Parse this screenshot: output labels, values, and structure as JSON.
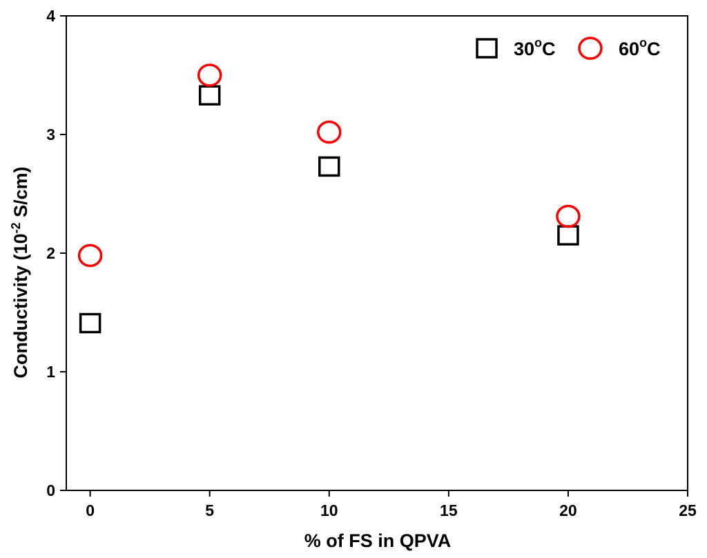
{
  "chart_data": {
    "type": "scatter",
    "title": "",
    "xlabel": "% of FS in QPVA",
    "ylabel": {
      "prefix": "Conductivity (10",
      "exponent": "-2",
      "suffix": " S/cm)"
    },
    "xlim": [
      -1,
      25
    ],
    "ylim": [
      0,
      4
    ],
    "x_ticks": [
      0,
      5,
      10,
      15,
      20,
      25
    ],
    "y_ticks": [
      0,
      1,
      2,
      3,
      4
    ],
    "grid": false,
    "legend_position": "top-right",
    "series": [
      {
        "name": "30°C",
        "label_number": "30",
        "label_degree": "o",
        "label_unit": "C",
        "marker": "square",
        "color": "#000000",
        "x": [
          0,
          5,
          10,
          20
        ],
        "y": [
          1.41,
          3.33,
          2.73,
          2.15
        ]
      },
      {
        "name": "60°C",
        "label_number": "60",
        "label_degree": "o",
        "label_unit": "C",
        "marker": "circle",
        "color": "#ff0000",
        "x": [
          0,
          5,
          10,
          20
        ],
        "y": [
          1.98,
          3.5,
          3.02,
          2.31
        ]
      }
    ]
  }
}
